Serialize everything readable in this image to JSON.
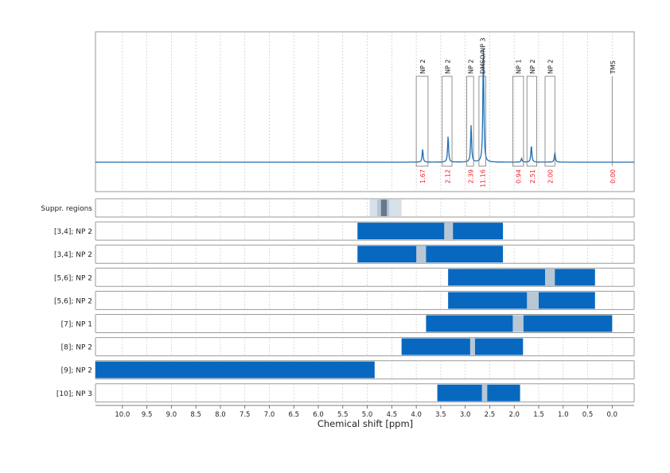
{
  "chart_data": {
    "type": "nmr-spectrum-with-interval-bars",
    "xlabel": "Chemical shift [ppm]",
    "x_reversed": true,
    "xlim": [
      10.55,
      -0.45
    ],
    "xticks": [
      10.0,
      9.5,
      9.0,
      8.5,
      8.0,
      7.5,
      7.0,
      6.5,
      6.0,
      5.5,
      5.0,
      4.5,
      4.0,
      3.5,
      3.0,
      2.5,
      2.0,
      1.5,
      1.0,
      0.5,
      0.0
    ],
    "xtick_labels": [
      "10.0",
      "9.5",
      "9.0",
      "8.5",
      "8.0",
      "7.5",
      "7.0",
      "6.5",
      "6.0",
      "5.5",
      "5.0",
      "4.5",
      "4.0",
      "3.5",
      "3.0",
      "2.5",
      "2.0",
      "1.5",
      "1.0",
      "0.5",
      "0.0"
    ],
    "grid": true,
    "spectrum": {
      "peaks": [
        {
          "ppm": 3.87,
          "height": 0.11
        },
        {
          "ppm": 3.35,
          "height": 0.22
        },
        {
          "ppm": 2.88,
          "height": 0.31
        },
        {
          "ppm": 2.63,
          "height": 0.95
        },
        {
          "ppm": 1.65,
          "height": 0.14
        },
        {
          "ppm": 1.17,
          "height": 0.08
        },
        {
          "ppm": 1.85,
          "height": 0.03
        }
      ]
    },
    "annotations": [
      {
        "label": "NP 2",
        "ppm_from": 4.0,
        "ppm_to": 3.76,
        "value": "1.67"
      },
      {
        "label": "NP 2",
        "ppm_from": 3.47,
        "ppm_to": 3.27,
        "value": "2.12"
      },
      {
        "label": "NP 2",
        "ppm_from": 2.97,
        "ppm_to": 2.83,
        "value": "2.39"
      },
      {
        "label": "DMSO/NP 3",
        "ppm_from": 2.72,
        "ppm_to": 2.58,
        "value": "11.16"
      },
      {
        "label": "NP 1",
        "ppm_from": 2.03,
        "ppm_to": 1.81,
        "value": "0.94"
      },
      {
        "label": "NP 2",
        "ppm_from": 1.74,
        "ppm_to": 1.54,
        "value": "2.51"
      },
      {
        "label": "NP 2",
        "ppm_from": 1.37,
        "ppm_to": 1.17,
        "value": "2.00"
      },
      {
        "label": "TMS",
        "ppm_from": 0.0,
        "ppm_to": 0.0,
        "value": "0.00"
      }
    ],
    "colors": {
      "spectrum": "#1f6fb4",
      "bar": "#0868bf",
      "gap": "#b8c7d6",
      "suppr_light": "#d5e0ea",
      "suppr_mid": "#b9c6d2",
      "suppr_dark": "#66798c",
      "annotation_value": "#e8242b",
      "grid": "#c8c8c8"
    },
    "suppression": {
      "label": "Suppr. regions",
      "bands": [
        {
          "from": 4.95,
          "to": 4.3,
          "level": "light"
        },
        {
          "from": 4.8,
          "to": 4.55,
          "level": "mid"
        },
        {
          "from": 4.72,
          "to": 4.6,
          "level": "dark"
        }
      ]
    },
    "rows": [
      {
        "label": "[3,4]; NP 2",
        "from": 5.2,
        "to": 2.23,
        "gap": [
          3.43,
          3.25
        ]
      },
      {
        "label": "[3,4]; NP 2",
        "from": 5.2,
        "to": 2.23,
        "gap": [
          4.0,
          3.8
        ]
      },
      {
        "label": "[5,6]; NP 2",
        "from": 3.35,
        "to": 0.35,
        "gap": [
          1.37,
          1.17
        ]
      },
      {
        "label": "[5,6]; NP 2",
        "from": 3.35,
        "to": 0.35,
        "gap": [
          1.74,
          1.5
        ]
      },
      {
        "label": "[7]; NP 1",
        "from": 3.8,
        "to": 0.0,
        "gap": [
          2.03,
          1.81
        ]
      },
      {
        "label": "[8]; NP 2",
        "from": 4.3,
        "to": 1.82,
        "gap": [
          2.9,
          2.8
        ]
      },
      {
        "label": "[9]; NP 2",
        "from": 10.55,
        "to": 4.85,
        "gap": null
      },
      {
        "label": "[10]; NP 3",
        "from": 3.57,
        "to": 1.88,
        "gap": [
          2.66,
          2.55
        ]
      }
    ]
  }
}
